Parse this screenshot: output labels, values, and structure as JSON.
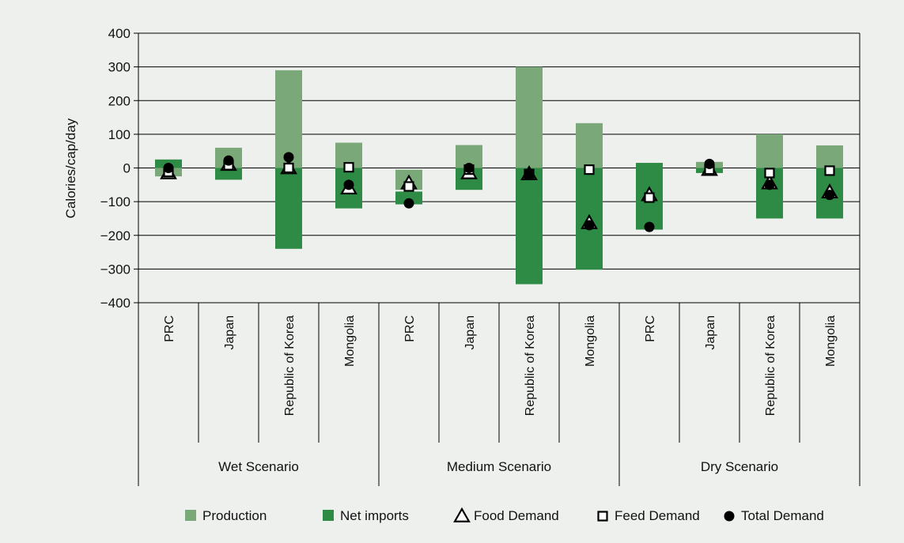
{
  "chart_data": {
    "type": "bar",
    "ylabel": "Calories/cap/day",
    "ylim": [
      -400,
      400
    ],
    "yticks": [
      "400",
      "300",
      "200",
      "100",
      "0",
      "−100",
      "−200",
      "−300",
      "−400"
    ],
    "grid": true,
    "legend_position": "bottom",
    "groups": [
      "Wet Scenario",
      "Medium Scenario",
      "Dry Scenario"
    ],
    "categories": [
      "PRC",
      "Japan",
      "Republic of Korea",
      "Mongolia",
      "PRC",
      "Japan",
      "Republic of Korea",
      "Mongolia",
      "PRC",
      "Japan",
      "Republic of Korea",
      "Mongolia"
    ],
    "category_group": [
      0,
      0,
      0,
      0,
      1,
      1,
      1,
      1,
      2,
      2,
      2,
      2
    ],
    "series": [
      {
        "name": "Production",
        "kind": "range_bar",
        "color": "#7aa879",
        "values": [
          [
            -25,
            25
          ],
          [
            0,
            60
          ],
          [
            0,
            290
          ],
          [
            0,
            75
          ],
          [
            -65,
            -5
          ],
          [
            0,
            68
          ],
          [
            0,
            300
          ],
          [
            0,
            133
          ],
          [
            -80,
            15
          ],
          [
            0,
            18
          ],
          [
            0,
            100
          ],
          [
            0,
            67
          ]
        ]
      },
      {
        "name": "Net imports",
        "kind": "range_bar",
        "color": "#2e8b45",
        "values": [
          [
            0,
            25
          ],
          [
            -35,
            0
          ],
          [
            -240,
            0
          ],
          [
            -120,
            0
          ],
          [
            -108,
            -70
          ],
          [
            -65,
            0
          ],
          [
            -345,
            0
          ],
          [
            -302,
            0
          ],
          [
            -183,
            15
          ],
          [
            -15,
            0
          ],
          [
            -150,
            0
          ],
          [
            -150,
            0
          ]
        ]
      },
      {
        "name": "Food Demand",
        "kind": "marker",
        "marker": "triangle",
        "values": [
          -15,
          10,
          0,
          -60,
          -45,
          -15,
          -18,
          -163,
          -80,
          -5,
          -45,
          -72
        ]
      },
      {
        "name": "Feed Demand",
        "kind": "marker",
        "marker": "square",
        "values": [
          -12,
          8,
          0,
          2,
          -55,
          -5,
          -18,
          -5,
          -88,
          -5,
          -15,
          -8
        ]
      },
      {
        "name": "Total Demand",
        "kind": "marker",
        "marker": "circle",
        "values": [
          0,
          22,
          32,
          -50,
          -105,
          0,
          -18,
          -170,
          -175,
          12,
          -50,
          -80
        ]
      }
    ]
  }
}
